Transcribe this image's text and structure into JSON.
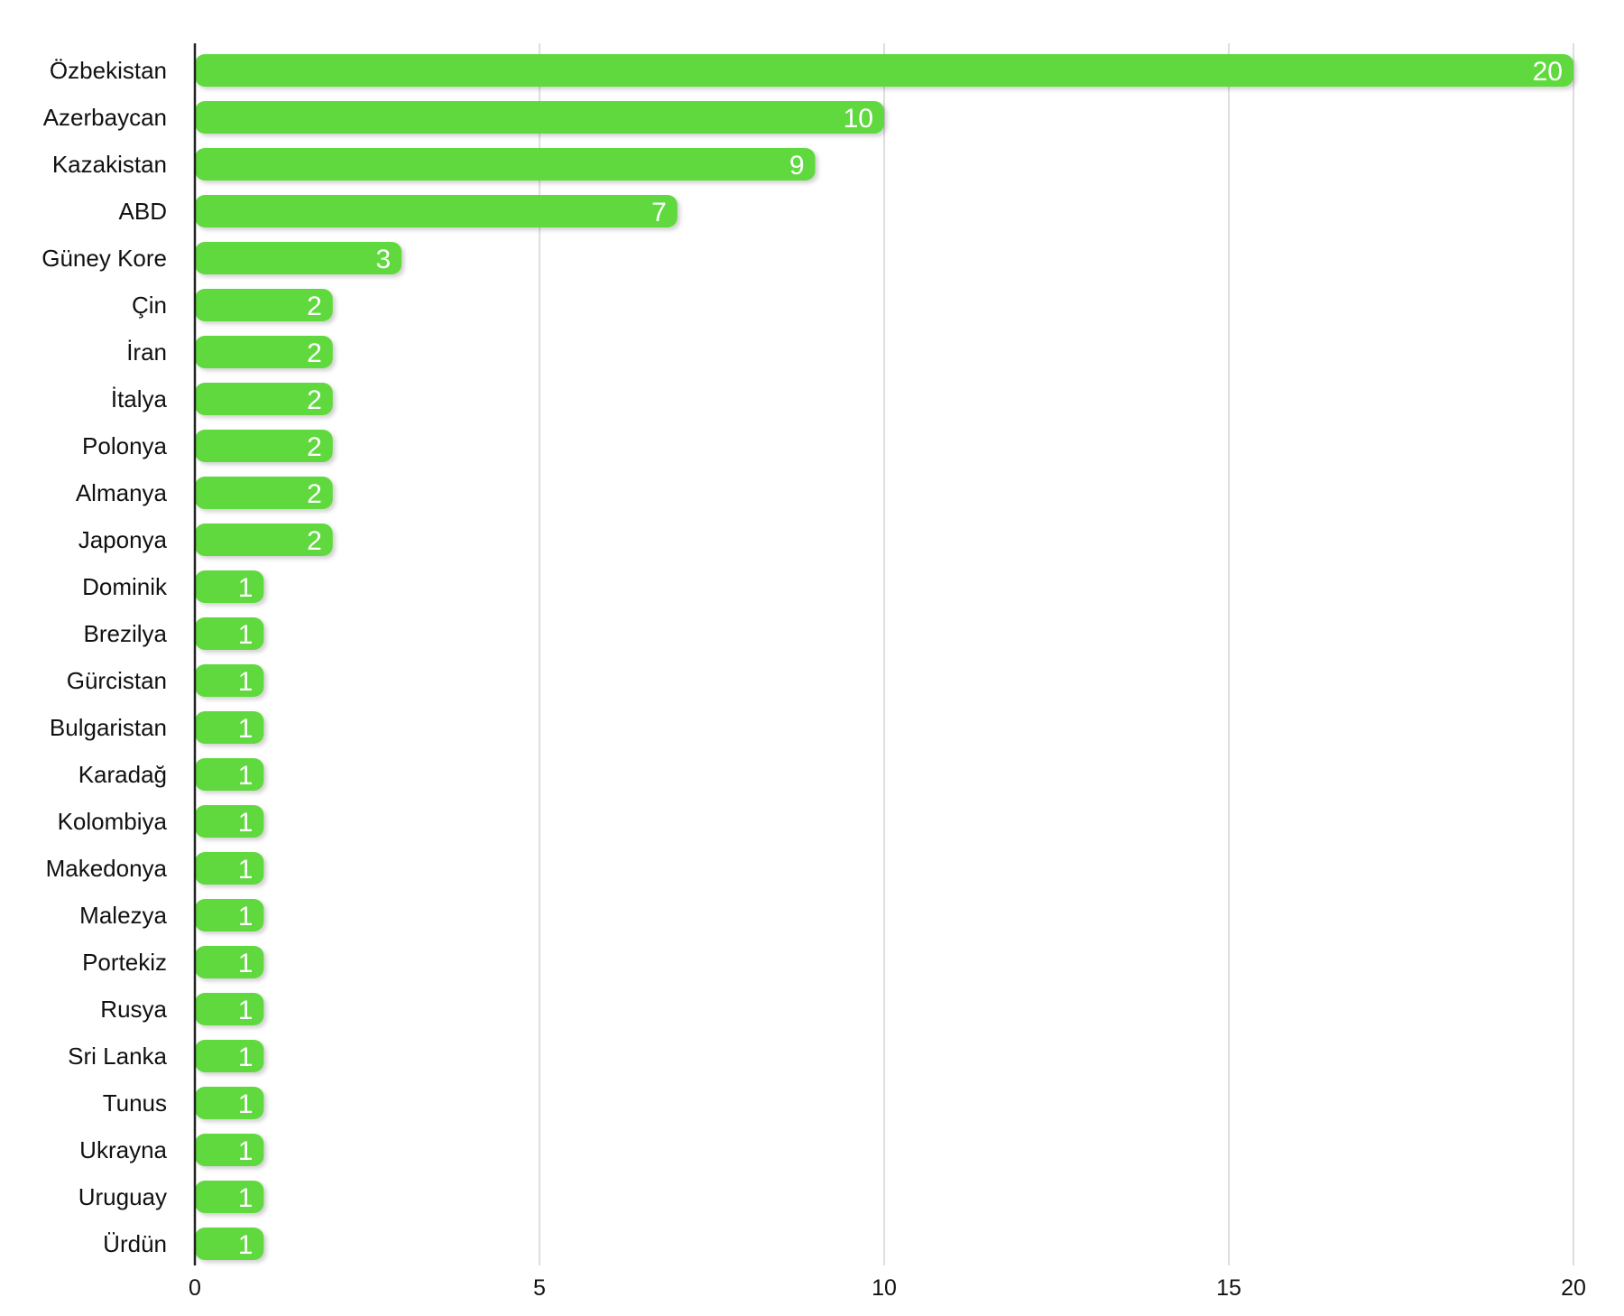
{
  "chart_data": {
    "type": "bar",
    "orientation": "horizontal",
    "categories": [
      "Özbekistan",
      "Azerbaycan",
      "Kazakistan",
      "ABD",
      "Güney Kore",
      "Çin",
      "İran",
      "İtalya",
      "Polonya",
      "Almanya",
      "Japonya",
      "Dominik",
      "Brezilya",
      "Gürcistan",
      "Bulgaristan",
      "Karadağ",
      "Kolombiya",
      "Makedonya",
      "Malezya",
      "Portekiz",
      "Rusya",
      "Sri Lanka",
      "Tunus",
      "Ukrayna",
      "Uruguay",
      "Ürdün"
    ],
    "values": [
      20,
      10,
      9,
      7,
      3,
      2,
      2,
      2,
      2,
      2,
      2,
      1,
      1,
      1,
      1,
      1,
      1,
      1,
      1,
      1,
      1,
      1,
      1,
      1,
      1,
      1
    ],
    "xlim": [
      0,
      20
    ],
    "x_ticks": [
      "0",
      "5",
      "10",
      "15",
      "20"
    ],
    "grid": "vertical",
    "data_labels": true,
    "bar_color": "#5ed93c",
    "title": "",
    "xlabel": "",
    "ylabel": ""
  }
}
